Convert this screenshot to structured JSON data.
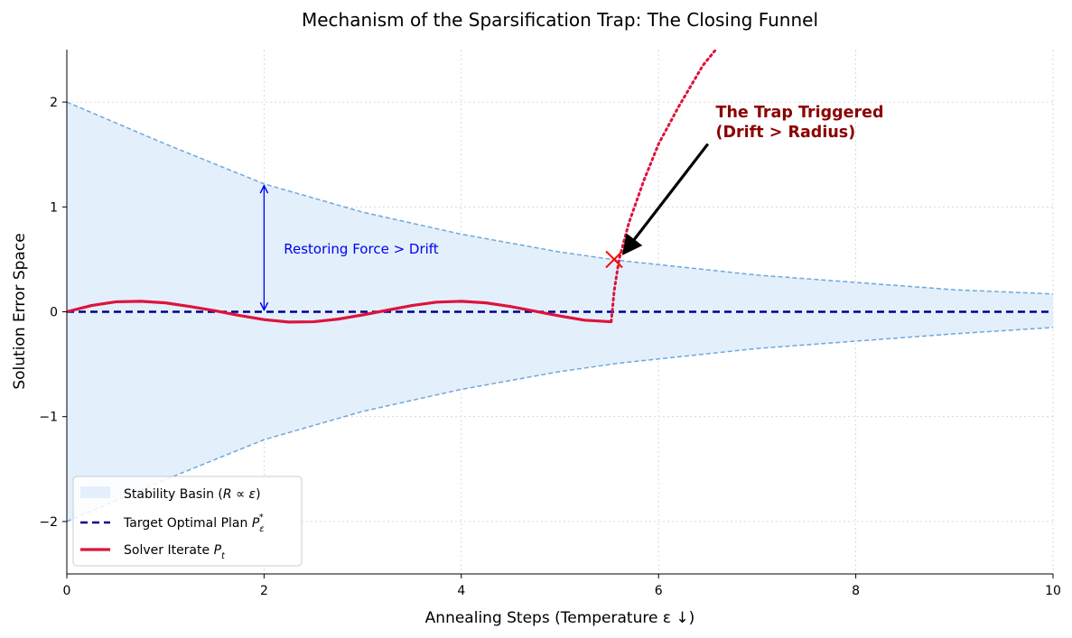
{
  "chart_data": {
    "type": "line",
    "title": "Mechanism of the Sparsification Trap: The Closing Funnel",
    "xlabel": "Annealing Steps (Temperature ε ↓)",
    "ylabel": "Solution Error Space",
    "xlim": [
      0,
      10
    ],
    "ylim": [
      -2.5,
      2.5
    ],
    "x_ticks": [
      0,
      2,
      4,
      6,
      8,
      10
    ],
    "x_tick_labels": [
      "0",
      "2",
      "4",
      "6",
      "8",
      "10"
    ],
    "y_ticks": [
      -2,
      -1,
      0,
      1,
      2
    ],
    "y_tick_labels": [
      "−2",
      "−1",
      "0",
      "1",
      "2"
    ],
    "grid": true,
    "colors": {
      "basin_fill": "#e3effb",
      "basin_edge": "#6fa8dc",
      "target": "#00008b",
      "solver": "#dc143c",
      "annot_blue": "#0000ee",
      "annot_red": "#8b0000",
      "marker": "#ff0000"
    },
    "series": [
      {
        "name": "Stability Basin (R ∝ ε)",
        "kind": "band",
        "x": [
          0,
          1,
          2,
          3,
          4,
          5,
          5.6,
          6,
          7,
          8,
          9,
          10
        ],
        "upper": [
          2.0,
          1.6,
          1.22,
          0.95,
          0.74,
          0.57,
          0.49,
          0.45,
          0.35,
          0.28,
          0.21,
          0.17
        ],
        "lower": [
          -2.0,
          -1.6,
          -1.22,
          -0.95,
          -0.74,
          -0.57,
          -0.49,
          -0.45,
          -0.35,
          -0.28,
          -0.21,
          -0.15
        ]
      },
      {
        "name": "Target Optimal Plan Pε*",
        "kind": "dashed-line",
        "x": [
          0,
          10
        ],
        "y": [
          0,
          0
        ]
      },
      {
        "name": "Solver Iterate Pt",
        "kind": "line",
        "x": [
          0,
          0.25,
          0.5,
          0.75,
          1.0,
          1.25,
          1.5,
          1.75,
          2.0,
          2.25,
          2.5,
          2.75,
          3.0,
          3.25,
          3.5,
          3.75,
          4.0,
          4.25,
          4.5,
          4.75,
          5.0,
          5.25,
          5.52
        ],
        "y": [
          0,
          0.06,
          0.095,
          0.1,
          0.085,
          0.05,
          0.01,
          -0.035,
          -0.075,
          -0.098,
          -0.095,
          -0.07,
          -0.03,
          0.015,
          0.06,
          0.092,
          0.1,
          0.085,
          0.05,
          0.005,
          -0.04,
          -0.08,
          -0.095
        ]
      },
      {
        "name": "Divergence",
        "kind": "dotted-line",
        "x": [
          5.52,
          5.55,
          5.6,
          5.7,
          5.85,
          6.0,
          6.2,
          6.45,
          6.58
        ],
        "y": [
          -0.095,
          0.2,
          0.5,
          0.85,
          1.25,
          1.6,
          1.95,
          2.35,
          2.5
        ]
      }
    ],
    "legend": {
      "placement": "lower-left",
      "entries": [
        {
          "label_main": "Stability Basin (",
          "label_math": "R ∝ ε",
          "label_tail": ")",
          "style": "patch"
        },
        {
          "label_main": "Target Optimal Plan ",
          "label_math": "P",
          "label_sub": "ε",
          "label_sup": "*",
          "style": "dashed"
        },
        {
          "label_main": "Solver Iterate ",
          "label_math": "P",
          "label_sub": "t",
          "style": "solid"
        }
      ]
    },
    "annotations": {
      "restoring_force": {
        "text": "Restoring Force > Drift",
        "arrow_x": 2.0,
        "arrow_from_y": 0.0,
        "arrow_to_y": 1.22,
        "text_x": 2.2,
        "text_y": 0.6
      },
      "trap": {
        "line1": "The Trap Triggered",
        "line2": "(Drift > Radius)",
        "text_x": 6.58,
        "text_y": 1.7,
        "arrow_from_x": 6.5,
        "arrow_from_y": 1.6,
        "arrow_to_x": 5.6,
        "arrow_to_y": 0.5
      },
      "marker": {
        "x": 5.55,
        "y": 0.5,
        "symbol": "x"
      }
    }
  }
}
